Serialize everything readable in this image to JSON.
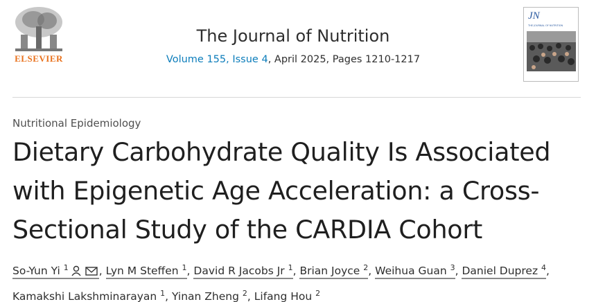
{
  "header": {
    "publisher": "ELSEVIER",
    "journal_title": "The Journal of Nutrition",
    "volume_link": "Volume 155, Issue 4",
    "issue_details": ", April 2025, Pages 1210-1217",
    "cover": {
      "logo": "JN",
      "subtitle": "THE JOURNAL OF NUTRITION"
    }
  },
  "article": {
    "section": "Nutritional Epidemiology",
    "title": "Dietary Carbohydrate Quality Is Associated with Epigenetic Age Acceleration: a Cross-Sectional Study of the CARDIA Cohort",
    "author_separator": ",",
    "authors": [
      {
        "name": "So-Yun Yi",
        "affiliation": 1
      },
      {
        "name": "Lyn M Steffen",
        "affiliation": 1
      },
      {
        "name": "David R Jacobs Jr",
        "affiliation": 1
      },
      {
        "name": "Brian Joyce",
        "affiliation": 2
      },
      {
        "name": "Weihua Guan",
        "affiliation": 3
      },
      {
        "name": "Daniel Duprez",
        "affiliation": 4
      },
      {
        "name": "Kamakshi Lakshminarayan",
        "affiliation": 1
      },
      {
        "name": "Yinan Zheng",
        "affiliation": 2
      },
      {
        "name": "Lifang Hou",
        "affiliation": 2
      }
    ]
  }
}
